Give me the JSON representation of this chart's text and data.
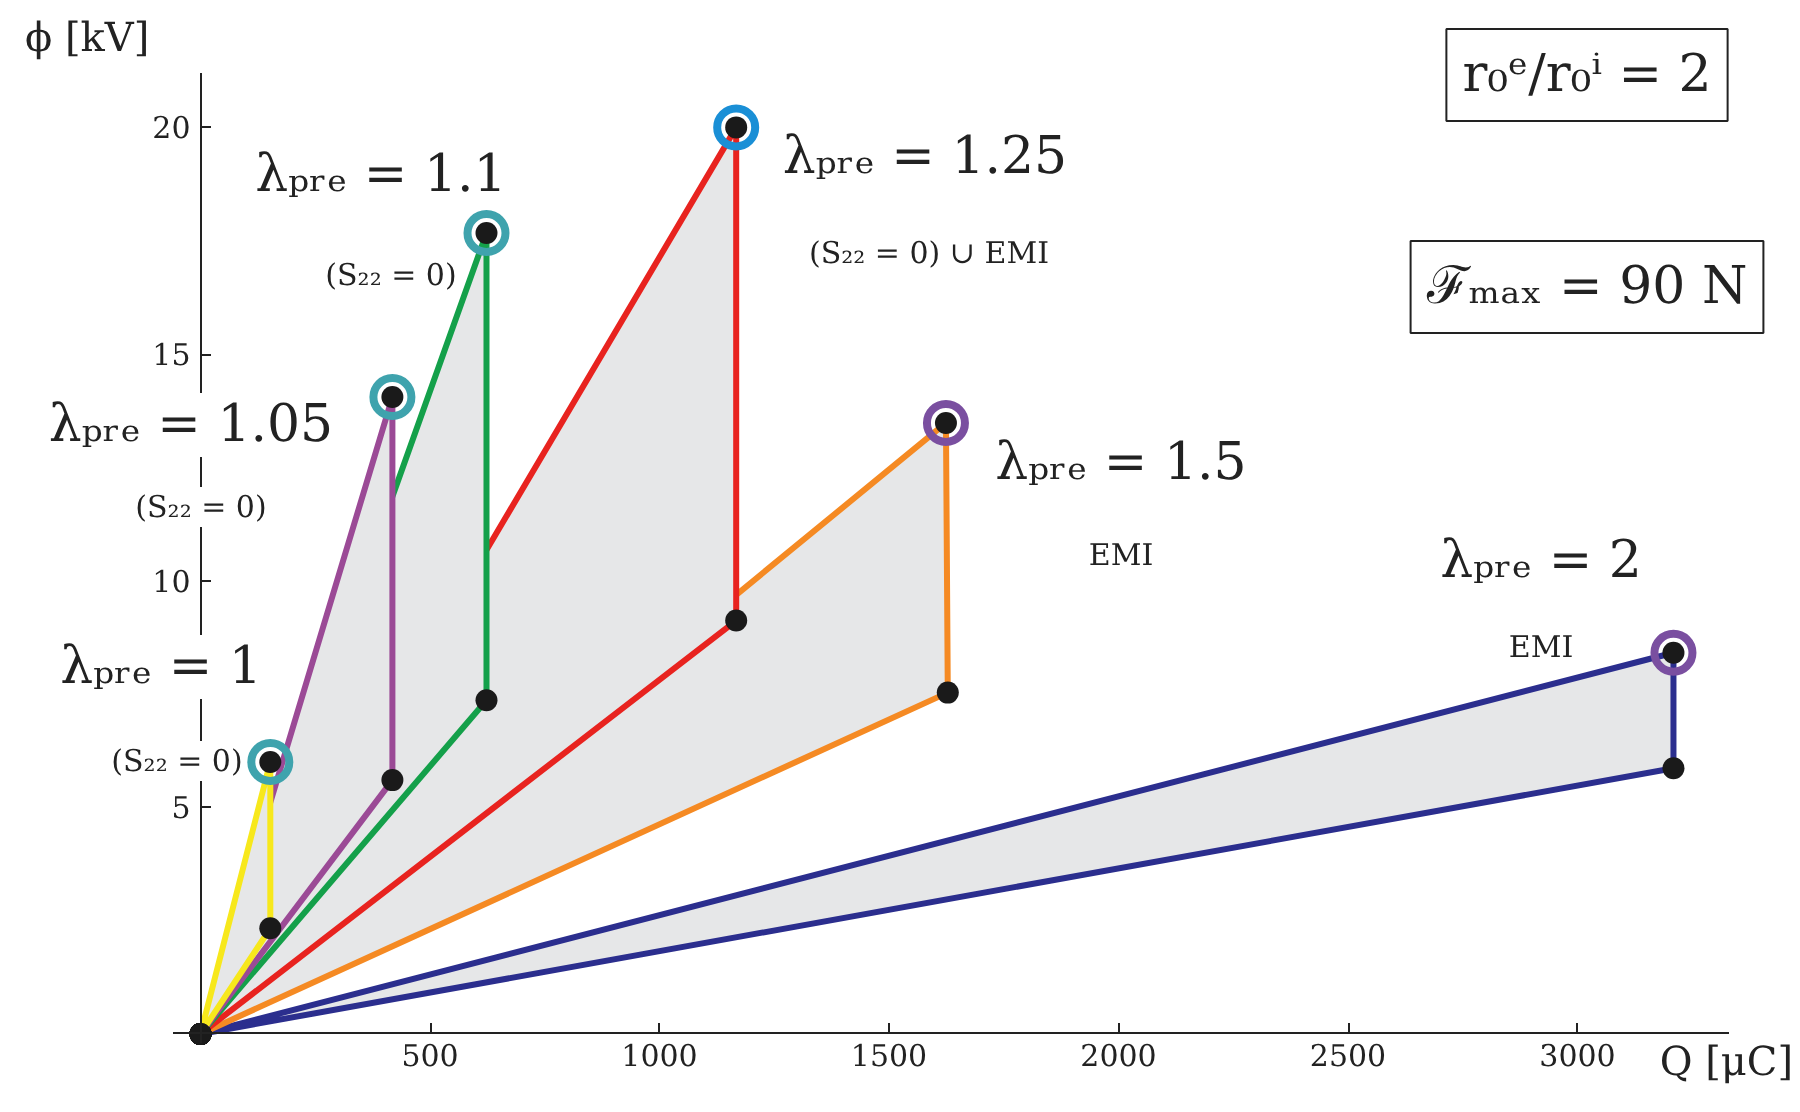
{
  "chart_data": {
    "type": "area",
    "xlabel": "Q [μC]",
    "ylabel": "ϕ [kV]",
    "xlim": [
      -60,
      3330
    ],
    "ylim": [
      -0.2,
      21.2
    ],
    "xticks": [
      500,
      1000,
      1500,
      2000,
      2500,
      3000
    ],
    "yticks": [
      5,
      10,
      15,
      20
    ],
    "grid": false,
    "marker": "circle",
    "line_style": "solid",
    "series": [
      {
        "color": "#f7e81c",
        "x": [
          0,
          152,
          152,
          0
        ],
        "values": [
          0,
          6.0,
          2.33,
          0
        ]
      },
      {
        "color": "#9b4a96",
        "x": [
          0,
          418,
          418,
          0
        ],
        "values": [
          0,
          14.05,
          5.6,
          0
        ]
      },
      {
        "color": "#14a04a",
        "x": [
          0,
          623,
          623,
          0
        ],
        "values": [
          0,
          17.67,
          7.36,
          0
        ]
      },
      {
        "color": "#e8231f",
        "x": [
          0,
          1167,
          1167,
          0
        ],
        "values": [
          0,
          20.0,
          9.12,
          0
        ]
      },
      {
        "color": "#f58a23",
        "x": [
          0,
          1624,
          1628,
          0
        ],
        "values": [
          0,
          13.48,
          7.53,
          0
        ]
      },
      {
        "color": "#2b2e8e",
        "x": [
          0,
          3209,
          3209,
          0
        ],
        "values": [
          0,
          8.41,
          5.86,
          0
        ]
      },
      {
        "type": "scatter",
        "colors": [
          "#3fa3ad",
          "#3fa3ad",
          "#3fa3ad",
          "#1a8fd6",
          "#7a4fa0",
          "#7a4fa0"
        ],
        "x": [
          152,
          418,
          623,
          1167,
          1624,
          3209
        ],
        "values": [
          6.0,
          14.05,
          17.67,
          20.0,
          13.48,
          8.41
        ]
      }
    ],
    "annotations": [
      "λₚᵣₑ = 1",
      "(S₂₂ = 0)",
      "λₚᵣₑ = 1.05",
      "(S₂₂ = 0)",
      "λₚᵣₑ = 1.1",
      "(S₂₂ = 0)",
      "λₚᵣₑ = 1.25",
      "(S₂₂ = 0) ∪ EMI",
      "λₚᵣₑ = 1.5",
      "EMI",
      "λₚᵣₑ = 2",
      "EMI",
      "r₀ᵉ/r₀ⁱ = 2",
      "ℱₘₐₓ = 90 N"
    ]
  }
}
